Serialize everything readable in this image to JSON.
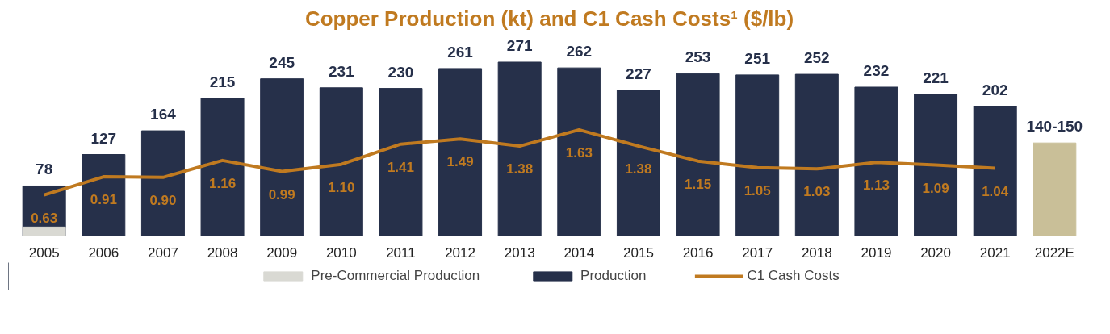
{
  "chart_data": {
    "type": "bar",
    "title": "Copper Production (kt) and C1 Cash Costs¹ ($/lb)",
    "categories": [
      "2005",
      "2006",
      "2007",
      "2008",
      "2009",
      "2010",
      "2011",
      "2012",
      "2013",
      "2014",
      "2015",
      "2016",
      "2017",
      "2018",
      "2019",
      "2020",
      "2021",
      "2022E"
    ],
    "tick_labels": "x",
    "grid": false,
    "legend": "bottom",
    "series": [
      {
        "name": "Pre-Commercial Production",
        "color": "#d9d9d3",
        "values": [
          14,
          null,
          null,
          null,
          null,
          null,
          null,
          null,
          null,
          null,
          null,
          null,
          null,
          null,
          null,
          null,
          null,
          null
        ]
      },
      {
        "name": "Production",
        "color": "#26304a",
        "values": [
          78,
          127,
          164,
          215,
          245,
          231,
          230,
          261,
          271,
          262,
          227,
          253,
          251,
          252,
          232,
          221,
          202,
          null
        ],
        "value_labels": [
          "78",
          "127",
          "164",
          "215",
          "245",
          "231",
          "230",
          "261",
          "271",
          "262",
          "227",
          "253",
          "251",
          "252",
          "232",
          "221",
          "202",
          null
        ]
      },
      {
        "color": "#c9bf98",
        "values": [
          null,
          null,
          null,
          null,
          null,
          null,
          null,
          null,
          null,
          null,
          null,
          null,
          null,
          null,
          null,
          null,
          null,
          145
        ],
        "value_labels": [
          null,
          null,
          null,
          null,
          null,
          null,
          null,
          null,
          null,
          null,
          null,
          null,
          null,
          null,
          null,
          null,
          null,
          "140-150"
        ]
      },
      {
        "name": "C1 Cash Costs",
        "type": "line",
        "axis": "y2",
        "color": "#c07a20",
        "line_style": "solid",
        "marker": "none",
        "values": [
          0.63,
          0.91,
          0.9,
          1.16,
          0.99,
          1.1,
          1.41,
          1.49,
          1.38,
          1.63,
          1.38,
          1.15,
          1.05,
          1.03,
          1.13,
          1.09,
          1.04,
          null
        ],
        "value_labels": [
          "0.63",
          "0.91",
          "0.90",
          "1.16",
          "0.99",
          "1.10",
          "1.41",
          "1.49",
          "1.38",
          "1.63",
          "1.38",
          "1.15",
          "1.05",
          "1.03",
          "1.13",
          "1.09",
          "1.04",
          null
        ]
      }
    ]
  }
}
